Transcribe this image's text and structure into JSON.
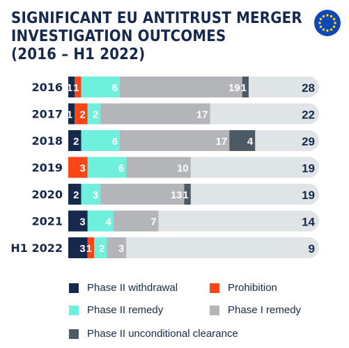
{
  "title": {
    "line1": "SIGNIFICANT EU ANTITRUST MERGER",
    "line2": "INVESTIGATION OUTCOMES",
    "line3": "(2016 – H1 2022)"
  },
  "flag_icon": "eu-flag-icon",
  "colors": {
    "phase2_withdrawal": "#14294b",
    "prohibition": "#fa4616",
    "phase2_remedy": "#6ff0dc",
    "phase1_remedy": "#b3b5b8",
    "phase2_unconditional": "#4c5a66",
    "track": "#dfe4e6",
    "text_dark": "#14294b",
    "flag_blue": "#0d47b8",
    "flag_star": "#ffdd00"
  },
  "chart_data": {
    "type": "bar",
    "orientation": "horizontal",
    "stacked": true,
    "categories": [
      "2016",
      "2017",
      "2018",
      "2019",
      "2020",
      "2021",
      "H1 2022"
    ],
    "series": [
      {
        "name": "Phase II withdrawal",
        "color_key": "phase2_withdrawal",
        "values": [
          1,
          1,
          2,
          0,
          2,
          3,
          3
        ]
      },
      {
        "name": "Prohibition",
        "color_key": "prohibition",
        "values": [
          1,
          2,
          0,
          3,
          0,
          0,
          1
        ]
      },
      {
        "name": "Phase II remedy",
        "color_key": "phase2_remedy",
        "values": [
          6,
          2,
          6,
          6,
          3,
          4,
          2
        ]
      },
      {
        "name": "Phase I remedy",
        "color_key": "phase1_remedy",
        "values": [
          19,
          17,
          17,
          10,
          13,
          7,
          3
        ]
      },
      {
        "name": "Phase II unconditional clearance",
        "color_key": "phase2_unconditional",
        "values": [
          1,
          0,
          4,
          0,
          1,
          0,
          0
        ]
      }
    ],
    "totals": [
      28,
      22,
      29,
      19,
      19,
      14,
      9
    ],
    "xlim": [
      0,
      34
    ],
    "grid": false,
    "legend_position": "bottom"
  }
}
